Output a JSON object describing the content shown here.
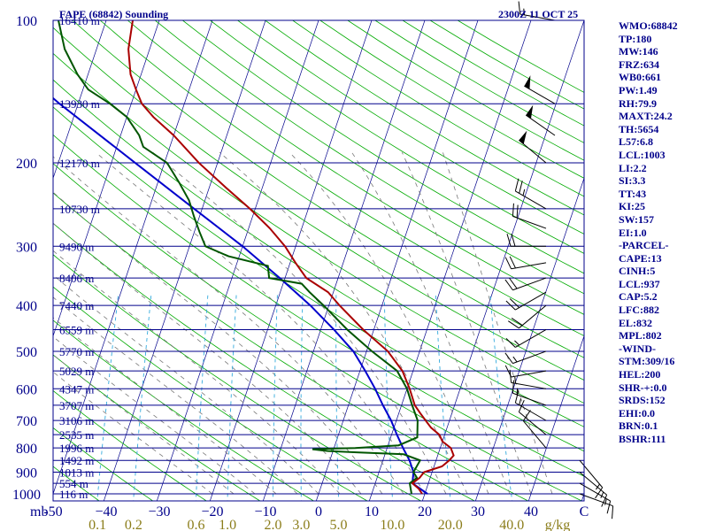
{
  "header": {
    "title": "FAPE (68842) Sounding",
    "time": "2300Z 11 OCT 25"
  },
  "side_panel": [
    "WMO:68842",
    "TP:180",
    "MW:146",
    "FRZ:634",
    "WB0:661",
    "PW:1.49",
    "RH:79.9",
    "MAXT:24.2",
    "TH:5654",
    "L57:6.8",
    "LCL:1003",
    "LI:2.2",
    "SI:3.3",
    "TT:43",
    "KI:25",
    "SW:157",
    "EI:1.0",
    "-PARCEL-",
    "CAPE:13",
    "CINH:5",
    "LCL:937",
    "CAP:5.2",
    "LFC:882",
    "EL:832",
    "MPL:802",
    "-WIND-",
    "STM:309/16",
    "HEL:200",
    "SHR-+:0.0",
    "SRDS:152",
    "EHI:0.0",
    "BRN:0.1",
    "BSHR:111"
  ],
  "colors": {
    "axis": "#00008b",
    "temperature": "#aa0000",
    "dewpoint": "#005500",
    "parcel": "#0000cc",
    "dry_adiabat": "#00aa00",
    "moist_adiabat": "#777777",
    "mixing_ratio": "#33aadd",
    "isotherm": "#00008b"
  },
  "chart_data": {
    "type": "skew-t",
    "pressure_axis_unit": "mb",
    "pressure_range": [
      1000,
      100
    ],
    "pressure_ticks": [
      100,
      200,
      300,
      400,
      500,
      600,
      700,
      800,
      900,
      1000
    ],
    "height_levels": [
      {
        "p": 100,
        "label": "16410 m"
      },
      {
        "p": 150,
        "label": "13930 m"
      },
      {
        "p": 200,
        "label": "12170 m"
      },
      {
        "p": 250,
        "label": "10730 m"
      },
      {
        "p": 300,
        "label": "9490 m"
      },
      {
        "p": 350,
        "label": "8406 m"
      },
      {
        "p": 400,
        "label": "7440 m"
      },
      {
        "p": 450,
        "label": "6559 m"
      },
      {
        "p": 500,
        "label": "5770 m"
      },
      {
        "p": 550,
        "label": "5029 m"
      },
      {
        "p": 600,
        "label": "4347 m"
      },
      {
        "p": 650,
        "label": "3707 m"
      },
      {
        "p": 700,
        "label": "3106 m"
      },
      {
        "p": 750,
        "label": "2535 m"
      },
      {
        "p": 800,
        "label": "1996 m"
      },
      {
        "p": 850,
        "label": "1492 m"
      },
      {
        "p": 900,
        "label": "1013 m"
      },
      {
        "p": 950,
        "label": "554 m"
      },
      {
        "p": 1000,
        "label": "116 m"
      }
    ],
    "temperature_ticks": [
      -50,
      -40,
      -30,
      -20,
      -10,
      0,
      10,
      20,
      30,
      40
    ],
    "temperature_ticks_label": [
      "-50",
      "−40",
      "−30",
      "−20",
      "−10",
      "0",
      "10",
      "20",
      "30",
      "40"
    ],
    "temperature_range_at_1000": [
      -50,
      50
    ],
    "xlabel_left": "mb",
    "xlabel_right": "C",
    "mixing_ratio_ticks": [
      "0.1",
      "0.2",
      "0.6",
      "1.0",
      "2.0",
      "3.0",
      "5.0",
      "10.0",
      "20.0",
      "40.0"
    ],
    "mixing_ratio_unit": "g/kg",
    "temperature_profile": [
      [
        1000,
        19.5
      ],
      [
        975,
        18.5
      ],
      [
        950,
        17.0
      ],
      [
        925,
        18.0
      ],
      [
        900,
        18.5
      ],
      [
        875,
        21.5
      ],
      [
        850,
        22.5
      ],
      [
        830,
        23.0
      ],
      [
        800,
        22.0
      ],
      [
        775,
        20.0
      ],
      [
        750,
        19.0
      ],
      [
        725,
        17.0
      ],
      [
        700,
        15.5
      ],
      [
        675,
        14.0
      ],
      [
        650,
        12.5
      ],
      [
        600,
        10.5
      ],
      [
        550,
        8.0
      ],
      [
        500,
        4.0
      ],
      [
        450,
        -2.0
      ],
      [
        400,
        -8.0
      ],
      [
        375,
        -11.0
      ],
      [
        350,
        -16.0
      ],
      [
        325,
        -19.0
      ],
      [
        300,
        -22.0
      ],
      [
        275,
        -26.0
      ],
      [
        250,
        -31.0
      ],
      [
        225,
        -37.0
      ],
      [
        200,
        -43.5
      ],
      [
        175,
        -50.0
      ],
      [
        160,
        -55.0
      ],
      [
        150,
        -58.0
      ],
      [
        140,
        -60.0
      ],
      [
        130,
        -62.0
      ],
      [
        115,
        -64.0
      ],
      [
        100,
        -65.0
      ],
      [
        92,
        -66.0
      ]
    ],
    "dewpoint_profile": [
      [
        1000,
        17.5
      ],
      [
        975,
        17.0
      ],
      [
        950,
        16.5
      ],
      [
        925,
        17.5
      ],
      [
        900,
        16.5
      ],
      [
        850,
        17.0
      ],
      [
        825,
        13.5
      ],
      [
        818,
        5.0
      ],
      [
        812,
        -1.0
      ],
      [
        805,
        -4.0
      ],
      [
        800,
        4.0
      ],
      [
        790,
        12.0
      ],
      [
        760,
        15.0
      ],
      [
        700,
        14.0
      ],
      [
        650,
        12.0
      ],
      [
        600,
        10.0
      ],
      [
        550,
        7.0
      ],
      [
        500,
        1.0
      ],
      [
        450,
        -5.0
      ],
      [
        400,
        -11.0
      ],
      [
        375,
        -14.5
      ],
      [
        360,
        -16.5
      ],
      [
        350,
        -23.0
      ],
      [
        330,
        -24.0
      ],
      [
        315,
        -32.0
      ],
      [
        300,
        -37.0
      ],
      [
        280,
        -39.0
      ],
      [
        260,
        -41.0
      ],
      [
        240,
        -43.0
      ],
      [
        220,
        -46.0
      ],
      [
        200,
        -49.5
      ],
      [
        185,
        -55.0
      ],
      [
        175,
        -56.5
      ],
      [
        160,
        -60.0
      ],
      [
        150,
        -64.0
      ],
      [
        140,
        -69.0
      ],
      [
        130,
        -72.0
      ],
      [
        115,
        -76.0
      ],
      [
        100,
        -79.0
      ],
      [
        92,
        -80.5
      ]
    ],
    "parcel_profile": [
      [
        1000,
        20.5
      ],
      [
        950,
        17.0
      ],
      [
        900,
        16.5
      ],
      [
        850,
        15.0
      ],
      [
        800,
        13.0
      ],
      [
        750,
        11.0
      ],
      [
        700,
        9.0
      ],
      [
        650,
        6.5
      ],
      [
        600,
        4.0
      ],
      [
        550,
        1.0
      ],
      [
        500,
        -2.5
      ],
      [
        450,
        -7.5
      ],
      [
        400,
        -13.5
      ],
      [
        350,
        -21.0
      ],
      [
        300,
        -30.0
      ],
      [
        250,
        -41.5
      ],
      [
        200,
        -55.5
      ],
      [
        150,
        -73.5
      ],
      [
        115,
        -89.0
      ],
      [
        100,
        -97.0
      ],
      [
        95,
        -99.0
      ]
    ],
    "wind_barbs": [
      {
        "p": 100,
        "dir": 280,
        "spd": 15
      },
      {
        "p": 150,
        "dir": 300,
        "spd": 50
      },
      {
        "p": 175,
        "dir": 305,
        "spd": 50
      },
      {
        "p": 200,
        "dir": 310,
        "spd": 50
      },
      {
        "p": 250,
        "dir": 300,
        "spd": 25
      },
      {
        "p": 275,
        "dir": 290,
        "spd": 20
      },
      {
        "p": 300,
        "dir": 270,
        "spd": 20
      },
      {
        "p": 325,
        "dir": 260,
        "spd": 20
      },
      {
        "p": 350,
        "dir": 250,
        "spd": 20
      },
      {
        "p": 375,
        "dir": 240,
        "spd": 20
      },
      {
        "p": 400,
        "dir": 230,
        "spd": 20
      },
      {
        "p": 450,
        "dir": 240,
        "spd": 15
      },
      {
        "p": 500,
        "dir": 250,
        "spd": 15
      },
      {
        "p": 550,
        "dir": 260,
        "spd": 10
      },
      {
        "p": 600,
        "dir": 280,
        "spd": 15
      },
      {
        "p": 650,
        "dir": 290,
        "spd": 15
      },
      {
        "p": 700,
        "dir": 300,
        "spd": 15
      },
      {
        "p": 750,
        "dir": 310,
        "spd": 10
      },
      {
        "p": 800,
        "dir": 320,
        "spd": 10
      },
      {
        "p": 850,
        "dir": 140,
        "spd": 15
      },
      {
        "p": 900,
        "dir": 130,
        "spd": 15
      },
      {
        "p": 950,
        "dir": 120,
        "spd": 15
      },
      {
        "p": 1000,
        "dir": 110,
        "spd": 10
      }
    ]
  }
}
